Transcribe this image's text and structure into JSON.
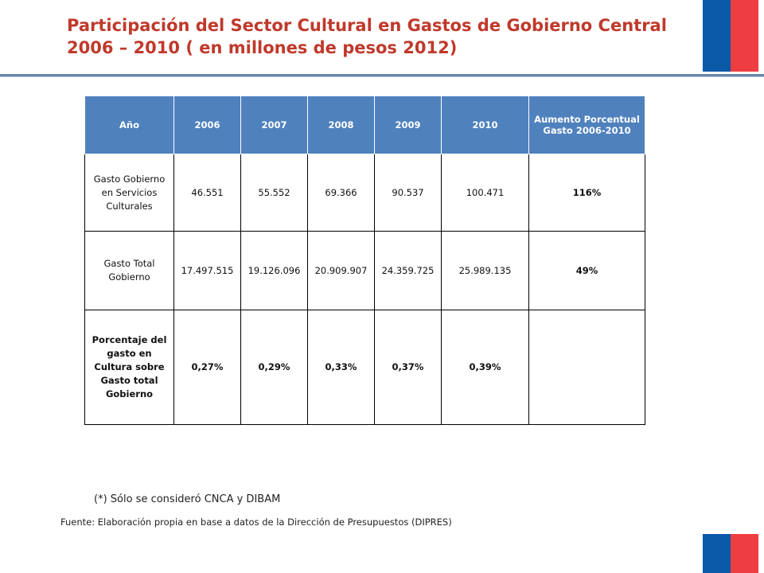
{
  "title": {
    "line1": "Participación del Sector Cultural en Gastos de Gobierno Central",
    "line2": "2006 – 2010 ( en millones de pesos 2012)"
  },
  "colors": {
    "title": "#c0392b",
    "header_fill": "#4f81bd",
    "flag_blue": "#0b5aa8",
    "flag_red": "#ef3e42"
  },
  "table": {
    "headers": [
      "Año",
      "2006",
      "2007",
      "2008",
      "2009",
      "2010",
      "Aumento Porcentual Gasto 2006-2010"
    ],
    "rows": [
      {
        "label": "Gasto Gobierno en Servicios Culturales",
        "values": [
          "46.551",
          "55.552",
          "69.366",
          "90.537",
          "100.471"
        ],
        "increase": "116%"
      },
      {
        "label": "Gasto Total Gobierno",
        "values": [
          "17.497.515",
          "19.126.096",
          "20.909.907",
          "24.359.725",
          "25.989.135"
        ],
        "increase": "49%"
      },
      {
        "label": "Porcentaje del gasto en Cultura sobre Gasto total Gobierno",
        "values": [
          "0,27%",
          "0,29%",
          "0,33%",
          "0,37%",
          "0,39%"
        ],
        "increase": ""
      }
    ]
  },
  "note": "(*) Sólo se consideró CNCA y DIBAM",
  "source": "Fuente: Elaboración propia en base a datos de la Dirección de Presupuestos (DIPRES)"
}
